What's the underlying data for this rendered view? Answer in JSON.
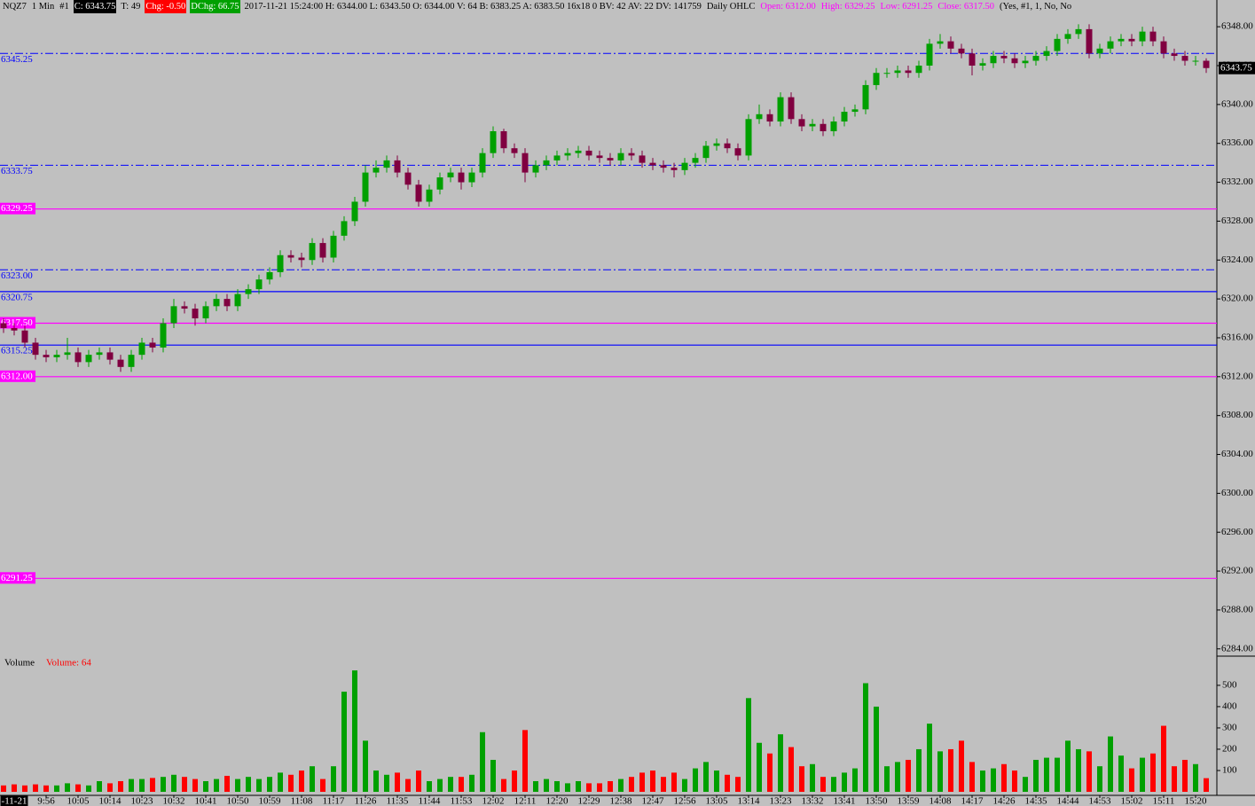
{
  "header": {
    "symbol": "NQZ7",
    "interval": "1 Min",
    "chart_no": "#1",
    "close": "C: 6343.75",
    "trades": "T: 49",
    "change": "Chg: -0.50",
    "daily_change": "DChg: 66.75",
    "details": "2017-11-21 15:24:00 H: 6344.00 L: 6343.50 O: 6344.00 V: 64 B: 6383.25 A: 6383.50 16x18 0 BV: 42 AV: 22 DV: 141759",
    "study": "Daily OHLC",
    "ohlc_open": "Open: 6312.00",
    "ohlc_high": "High: 6329.25",
    "ohlc_low": "Low: 6291.25",
    "ohlc_close": "Close: 6317.50",
    "study_args": "(Yes, #1, 1, No, No"
  },
  "chart_data": [
    {
      "type": "candlestick",
      "up_color": "#00a000",
      "down_color": "#800040",
      "categories": [
        null,
        "-11-21",
        null,
        null,
        "9:56",
        null,
        null,
        "10:05",
        null,
        null,
        "10:14",
        null,
        null,
        "10:23",
        null,
        null,
        "10:32",
        null,
        null,
        "10:41",
        null,
        null,
        "10:50",
        null,
        null,
        "10:59",
        null,
        null,
        "11:08",
        null,
        null,
        "11:17",
        null,
        null,
        "11:26",
        null,
        null,
        "11:35",
        null,
        null,
        "11:44",
        null,
        null,
        "11:53",
        null,
        null,
        "12:02",
        null,
        null,
        "12:11",
        null,
        null,
        "12:20",
        null,
        null,
        "12:29",
        null,
        null,
        "12:38",
        null,
        null,
        "12:47",
        null,
        null,
        "12:56",
        null,
        null,
        "13:05",
        null,
        null,
        "13:14",
        null,
        null,
        "13:23",
        null,
        null,
        "13:32",
        null,
        null,
        "13:41",
        null,
        null,
        "13:50",
        null,
        null,
        "13:59",
        null,
        null,
        "14:08",
        null,
        null,
        "14:17",
        null,
        null,
        "14:26",
        null,
        null,
        "14:35",
        null,
        null,
        "14:44",
        null,
        null,
        "14:53",
        null,
        null,
        "15:02",
        null,
        null,
        "15:11",
        null,
        null,
        "15:20",
        null
      ],
      "candles": [
        [
          6317.5,
          6318,
          6316.5,
          6317
        ],
        [
          6317,
          6317.5,
          6316.25,
          6316.75
        ],
        [
          6316.75,
          6317.25,
          6315,
          6315.5
        ],
        [
          6315.5,
          6316,
          6313.75,
          6314.25
        ],
        [
          6314.25,
          6314.75,
          6313.5,
          6314
        ],
        [
          6314,
          6314.75,
          6313.5,
          6314.25
        ],
        [
          6314.25,
          6316,
          6313.75,
          6314.5
        ],
        [
          6314.5,
          6315,
          6313,
          6313.5
        ],
        [
          6313.5,
          6314.75,
          6313,
          6314.25
        ],
        [
          6314.25,
          6315,
          6313.75,
          6314.5
        ],
        [
          6314.5,
          6315,
          6313.25,
          6313.75
        ],
        [
          6313.75,
          6314.25,
          6312.5,
          6313
        ],
        [
          6313,
          6314.75,
          6312.5,
          6314.25
        ],
        [
          6314.25,
          6316,
          6313.75,
          6315.5
        ],
        [
          6315.5,
          6316,
          6314.5,
          6315
        ],
        [
          6315,
          6318,
          6314.5,
          6317.5
        ],
        [
          6317.5,
          6320,
          6317,
          6319.25
        ],
        [
          6319.25,
          6319.75,
          6318.5,
          6319
        ],
        [
          6319,
          6319.5,
          6317.25,
          6318
        ],
        [
          6318,
          6319.75,
          6317.5,
          6319.25
        ],
        [
          6319.25,
          6320.5,
          6318.75,
          6320
        ],
        [
          6320,
          6320.5,
          6318.75,
          6319.25
        ],
        [
          6319.25,
          6321,
          6318.75,
          6320.5
        ],
        [
          6320.5,
          6321.5,
          6320,
          6321
        ],
        [
          6321,
          6322.5,
          6320.5,
          6322
        ],
        [
          6322,
          6323.25,
          6321.5,
          6322.75
        ],
        [
          6322.75,
          6325,
          6322.25,
          6324.5
        ],
        [
          6324.5,
          6325,
          6323.75,
          6324.25
        ],
        [
          6324.25,
          6324.75,
          6323.25,
          6324
        ],
        [
          6324,
          6326.25,
          6323.5,
          6325.75
        ],
        [
          6325.75,
          6326.25,
          6323.75,
          6324.25
        ],
        [
          6324.25,
          6327,
          6323.75,
          6326.5
        ],
        [
          6326.5,
          6328.5,
          6326,
          6328
        ],
        [
          6328,
          6330.5,
          6327.5,
          6330
        ],
        [
          6330,
          6333.75,
          6329.5,
          6333
        ],
        [
          6333,
          6334.25,
          6332.5,
          6333.5
        ],
        [
          6333.5,
          6334.75,
          6333,
          6334.25
        ],
        [
          6334.25,
          6334.75,
          6332.5,
          6333
        ],
        [
          6333,
          6333.5,
          6331.25,
          6331.75
        ],
        [
          6331.75,
          6332.25,
          6329.5,
          6330
        ],
        [
          6330,
          6331.75,
          6329.5,
          6331.25
        ],
        [
          6331.25,
          6333,
          6330.75,
          6332.5
        ],
        [
          6332.5,
          6333.5,
          6332,
          6333
        ],
        [
          6333,
          6333.5,
          6331.25,
          6332
        ],
        [
          6332,
          6333.5,
          6331.5,
          6333
        ],
        [
          6333,
          6335.5,
          6332.5,
          6335
        ],
        [
          6335,
          6337.75,
          6334.5,
          6337.25
        ],
        [
          6337.25,
          6337.5,
          6335,
          6335.5
        ],
        [
          6335.5,
          6336,
          6334.5,
          6335
        ],
        [
          6335,
          6335.5,
          6332,
          6333
        ],
        [
          6333,
          6334.25,
          6332.5,
          6333.75
        ],
        [
          6333.75,
          6334.75,
          6333.25,
          6334.25
        ],
        [
          6334.25,
          6335.25,
          6333.75,
          6334.75
        ],
        [
          6334.75,
          6335.5,
          6334.25,
          6335
        ],
        [
          6335,
          6335.75,
          6334.5,
          6335.25
        ],
        [
          6335.25,
          6335.75,
          6334.25,
          6334.75
        ],
        [
          6334.75,
          6335.25,
          6334,
          6334.5
        ],
        [
          6334.5,
          6335,
          6333.75,
          6334.25
        ],
        [
          6334.25,
          6335.5,
          6333.75,
          6335
        ],
        [
          6335,
          6335.5,
          6334.25,
          6334.75
        ],
        [
          6334.75,
          6335.25,
          6333.5,
          6334
        ],
        [
          6334,
          6334.5,
          6333.25,
          6333.75
        ],
        [
          6333.75,
          6334.25,
          6333,
          6333.5
        ],
        [
          6333.5,
          6334,
          6332.5,
          6333.25
        ],
        [
          6333.25,
          6334.5,
          6332.75,
          6334
        ],
        [
          6334,
          6335,
          6333.5,
          6334.5
        ],
        [
          6334.5,
          6336.25,
          6334,
          6335.75
        ],
        [
          6335.75,
          6336.5,
          6335.25,
          6336
        ],
        [
          6336,
          6336.5,
          6335,
          6335.5
        ],
        [
          6335.5,
          6336,
          6334.25,
          6334.75
        ],
        [
          6334.75,
          6339,
          6334.25,
          6338.5
        ],
        [
          6338.5,
          6340,
          6338,
          6339
        ],
        [
          6339,
          6339.5,
          6337.75,
          6338.25
        ],
        [
          6338.25,
          6341.25,
          6337.75,
          6340.75
        ],
        [
          6340.75,
          6341.25,
          6338,
          6338.5
        ],
        [
          6338.5,
          6339,
          6337.25,
          6337.75
        ],
        [
          6337.75,
          6338.5,
          6337.25,
          6338
        ],
        [
          6338,
          6338.5,
          6336.75,
          6337.25
        ],
        [
          6337.25,
          6338.75,
          6336.75,
          6338.25
        ],
        [
          6338.25,
          6339.75,
          6337.75,
          6339.25
        ],
        [
          6339.25,
          6340,
          6338.75,
          6339.5
        ],
        [
          6339.5,
          6342.5,
          6339,
          6342
        ],
        [
          6342,
          6343.75,
          6341.5,
          6343.25
        ],
        [
          6343.25,
          6343.75,
          6342.75,
          6343.25
        ],
        [
          6343.25,
          6344,
          6342.75,
          6343.5
        ],
        [
          6343.5,
          6344,
          6342.75,
          6343.25
        ],
        [
          6343.25,
          6344.5,
          6342.75,
          6344
        ],
        [
          6344,
          6346.75,
          6343.5,
          6346.25
        ],
        [
          6346.25,
          6347.25,
          6345.75,
          6346.5
        ],
        [
          6346.5,
          6347,
          6345.25,
          6345.75
        ],
        [
          6345.75,
          6346.25,
          6344.75,
          6345.25
        ],
        [
          6345.25,
          6345.75,
          6343,
          6344
        ],
        [
          6344,
          6344.75,
          6343.5,
          6344.25
        ],
        [
          6344.25,
          6345.5,
          6343.75,
          6345
        ],
        [
          6345,
          6345.5,
          6344.25,
          6344.75
        ],
        [
          6344.75,
          6345.25,
          6343.75,
          6344.25
        ],
        [
          6344.25,
          6345,
          6343.75,
          6344.5
        ],
        [
          6344.5,
          6345.5,
          6344,
          6345
        ],
        [
          6345,
          6346,
          6344.5,
          6345.5
        ],
        [
          6345.5,
          6347.25,
          6345,
          6346.75
        ],
        [
          6346.75,
          6347.75,
          6346.25,
          6347.25
        ],
        [
          6347.25,
          6348.25,
          6346.75,
          6347.75
        ],
        [
          6347.75,
          6348.25,
          6344.75,
          6345.25
        ],
        [
          6345.25,
          6346.25,
          6344.75,
          6345.75
        ],
        [
          6345.75,
          6347,
          6345.25,
          6346.5
        ],
        [
          6346.5,
          6347.25,
          6346,
          6346.75
        ],
        [
          6346.75,
          6347.25,
          6346,
          6346.5
        ],
        [
          6346.5,
          6348,
          6346,
          6347.5
        ],
        [
          6347.5,
          6348,
          6346,
          6346.5
        ],
        [
          6346.5,
          6347,
          6344.75,
          6345.25
        ],
        [
          6345.25,
          6345.75,
          6344.5,
          6345
        ],
        [
          6345,
          6345.5,
          6344,
          6344.5
        ],
        [
          6344.5,
          6345,
          6344,
          6344.5
        ],
        [
          6344.5,
          6344.75,
          6343.25,
          6343.75
        ]
      ],
      "ylim": [
        6283.25,
        6350.75
      ],
      "yticks": [
        {
          "value": 6284,
          "label": "6284.00"
        },
        {
          "value": 6288,
          "label": "6288.00"
        },
        {
          "value": 6292,
          "label": "6292.00"
        },
        {
          "value": 6296,
          "label": "6296.00"
        },
        {
          "value": 6300,
          "label": "6300.00"
        },
        {
          "value": 6304,
          "label": "6304.00"
        },
        {
          "value": 6308,
          "label": "6308.00"
        },
        {
          "value": 6312,
          "label": "6312.00"
        },
        {
          "value": 6316,
          "label": "6316.00"
        },
        {
          "value": 6320,
          "label": "6320.00"
        },
        {
          "value": 6324,
          "label": "6324.00"
        },
        {
          "value": 6328,
          "label": "6328.00"
        },
        {
          "value": 6332,
          "label": "6332.00"
        },
        {
          "value": 6336,
          "label": "6336.00"
        },
        {
          "value": 6340,
          "label": "6340.00"
        },
        {
          "value": 6344,
          "label": "6344.00"
        },
        {
          "value": 6348,
          "label": "6348.00"
        }
      ],
      "last_price": {
        "value": 6343.75,
        "label": "6343.75"
      },
      "levels": [
        {
          "value": 6345.25,
          "label": "6345.25",
          "color": "#0000ff",
          "style": "dashdot"
        },
        {
          "value": 6333.75,
          "label": "6333.75",
          "color": "#0000ff",
          "style": "dashdot"
        },
        {
          "value": 6329.25,
          "label": "6329.25",
          "color": "#ff00ff",
          "style": "solid"
        },
        {
          "value": 6323,
          "label": "6323.00",
          "color": "#0000ff",
          "style": "dashdot"
        },
        {
          "value": 6320.75,
          "label": "6320.75",
          "color": "#0000ff",
          "style": "solid"
        },
        {
          "value": 6317.5,
          "label": "6317.50",
          "color": "#ff00ff",
          "style": "solid"
        },
        {
          "value": 6315.25,
          "label": "6315.25",
          "color": "#0000ff",
          "style": "solid"
        },
        {
          "value": 6312,
          "label": "6312.00",
          "color": "#ff00ff",
          "style": "solid"
        },
        {
          "value": 6291.25,
          "label": "6291.25",
          "color": "#ff00ff",
          "style": "solid"
        }
      ]
    },
    {
      "type": "volume",
      "title": "Volume",
      "value_label": "Volume: 64",
      "values": [
        30,
        35,
        30,
        35,
        30,
        30,
        40,
        35,
        30,
        50,
        40,
        50,
        60,
        60,
        65,
        70,
        80,
        70,
        60,
        50,
        60,
        75,
        60,
        70,
        60,
        70,
        90,
        80,
        100,
        120,
        60,
        120,
        470,
        570,
        240,
        100,
        80,
        90,
        60,
        100,
        50,
        60,
        70,
        70,
        80,
        280,
        150,
        60,
        100,
        290,
        50,
        60,
        50,
        40,
        50,
        40,
        40,
        50,
        60,
        70,
        90,
        100,
        70,
        90,
        60,
        110,
        140,
        100,
        80,
        70,
        440,
        230,
        180,
        270,
        210,
        120,
        130,
        70,
        70,
        90,
        110,
        510,
        400,
        120,
        140,
        150,
        200,
        320,
        190,
        200,
        240,
        140,
        100,
        110,
        130,
        100,
        70,
        150,
        160,
        160,
        240,
        200,
        190,
        120,
        260,
        170,
        110,
        160,
        180,
        310,
        120,
        150,
        130,
        64
      ],
      "ylim": [
        0,
        637
      ],
      "yticks": [
        100,
        200,
        300,
        400,
        500
      ]
    }
  ]
}
